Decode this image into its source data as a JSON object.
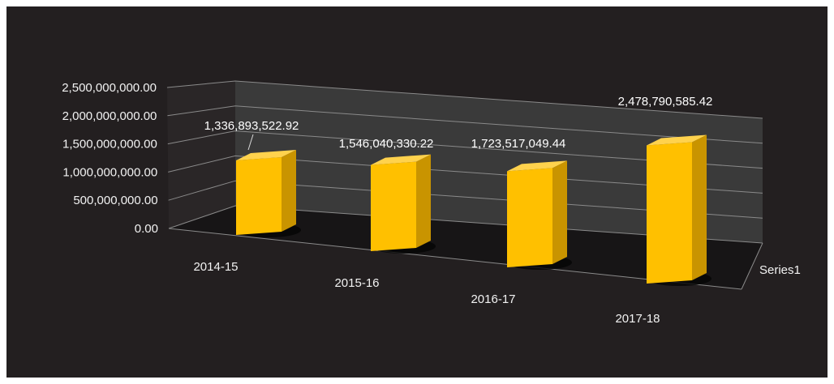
{
  "chart_data": {
    "type": "bar",
    "title": "",
    "xlabel": "",
    "ylabel": "",
    "categories": [
      "2014-15",
      "2015-16",
      "2016-17",
      "2017-18"
    ],
    "series": [
      {
        "name": "Series1",
        "values": [
          1336893522.92,
          1546040330.22,
          1723517049.44,
          2478790585.42
        ],
        "data_labels": [
          "1,336,893,522.92",
          "1,546,040,330.22",
          "1,723,517,049.44",
          "2,478,790,585.42"
        ]
      }
    ],
    "yticks": [
      "0.00",
      "500,000,000.00",
      "1,000,000,000.00",
      "1,500,000,000.00",
      "2,000,000,000.00",
      "2,500,000,000.00"
    ],
    "ylim": [
      0,
      2500000000
    ],
    "grid": true,
    "style": "3d-column",
    "colors": {
      "background": "#231f20",
      "bar_front": "#ffc000",
      "bar_top": "#ffd24d",
      "bar_side": "#c99400",
      "text": "#f2f2f2",
      "gridline": "#8a8a8a"
    }
  }
}
